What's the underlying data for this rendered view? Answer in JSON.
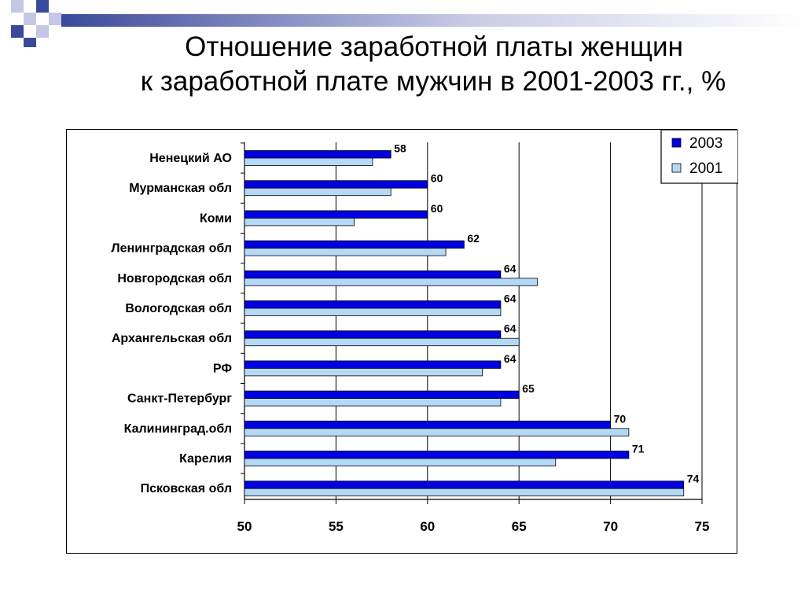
{
  "slide": {
    "title_line1": "Отношение заработной платы женщин",
    "title_line2": "к заработной плате мужчин в 2001-2003 гг., %"
  },
  "colors": {
    "series_2003": "#0000e0",
    "series_2001": "#b4d8f8",
    "deco_dark": "#3a4a9a",
    "deco_light": "#c4c8e4"
  },
  "chart_data": {
    "type": "bar",
    "orientation": "horizontal",
    "title": "Отношение заработной платы женщин к заработной плате мужчин в 2001-2003 гг., %",
    "xlabel": "",
    "ylabel": "",
    "xlim": [
      50,
      75
    ],
    "xticks": [
      50,
      55,
      60,
      65,
      70,
      75
    ],
    "grid": true,
    "legend_position": "top-right",
    "categories": [
      "Ненецкий АО",
      "Мурманская обл",
      "Коми",
      "Ленинградская обл",
      "Новгородская обл",
      "Вологодская обл",
      "Архангельская обл",
      "РФ",
      "Санкт-Петербург",
      "Калининград.обл",
      "Карелия",
      "Псковская обл"
    ],
    "series": [
      {
        "name": "2003",
        "values": [
          58,
          60,
          60,
          62,
          64,
          64,
          64,
          64,
          65,
          70,
          71,
          74
        ],
        "data_labels": [
          "58",
          "60",
          "60",
          "62",
          "64",
          "64",
          "64",
          "64",
          "65",
          "70",
          "71",
          "74"
        ]
      },
      {
        "name": "2001",
        "values": [
          57,
          58,
          56,
          61,
          66,
          64,
          65,
          63,
          64,
          71,
          67,
          74
        ]
      }
    ]
  }
}
